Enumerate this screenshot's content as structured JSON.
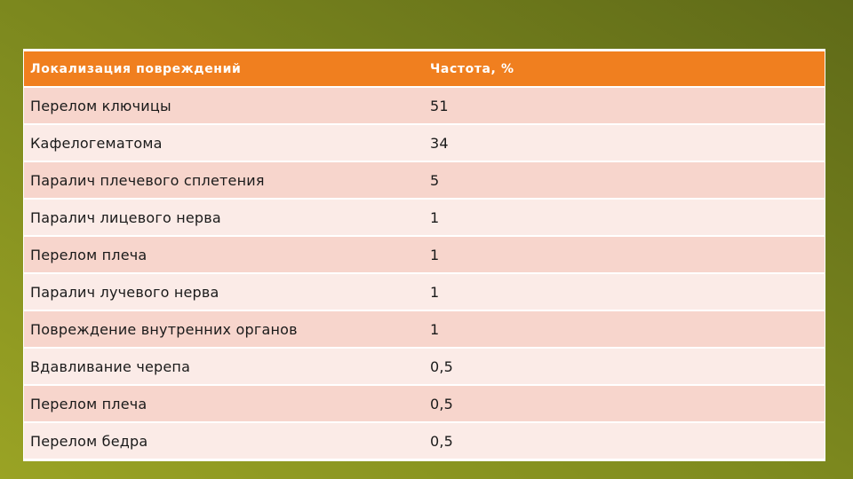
{
  "table": {
    "headers": [
      "Локализация повреждений",
      "Частота, %"
    ],
    "rows": [
      [
        "Перелом ключицы",
        "51"
      ],
      [
        "Кафелогематома",
        "34"
      ],
      [
        "Паралич плечевого сплетения",
        "5"
      ],
      [
        "Паралич лицевого нерва",
        "1"
      ],
      [
        "Перелом плеча",
        "1"
      ],
      [
        "Паралич лучевого нерва",
        "1"
      ],
      [
        "Повреждение внутренних органов",
        "1"
      ],
      [
        "Вдавливание черепа",
        "0,5"
      ],
      [
        "Перелом плеча",
        "0,5"
      ],
      [
        "Перелом бедра",
        "0,5"
      ]
    ]
  },
  "colors": {
    "header_bg": "#f07f1f",
    "row_odd_bg": "#f7d5cc",
    "row_even_bg": "#fbebe7",
    "background_light": "#9aa324",
    "background_dark": "#5f6a18"
  }
}
